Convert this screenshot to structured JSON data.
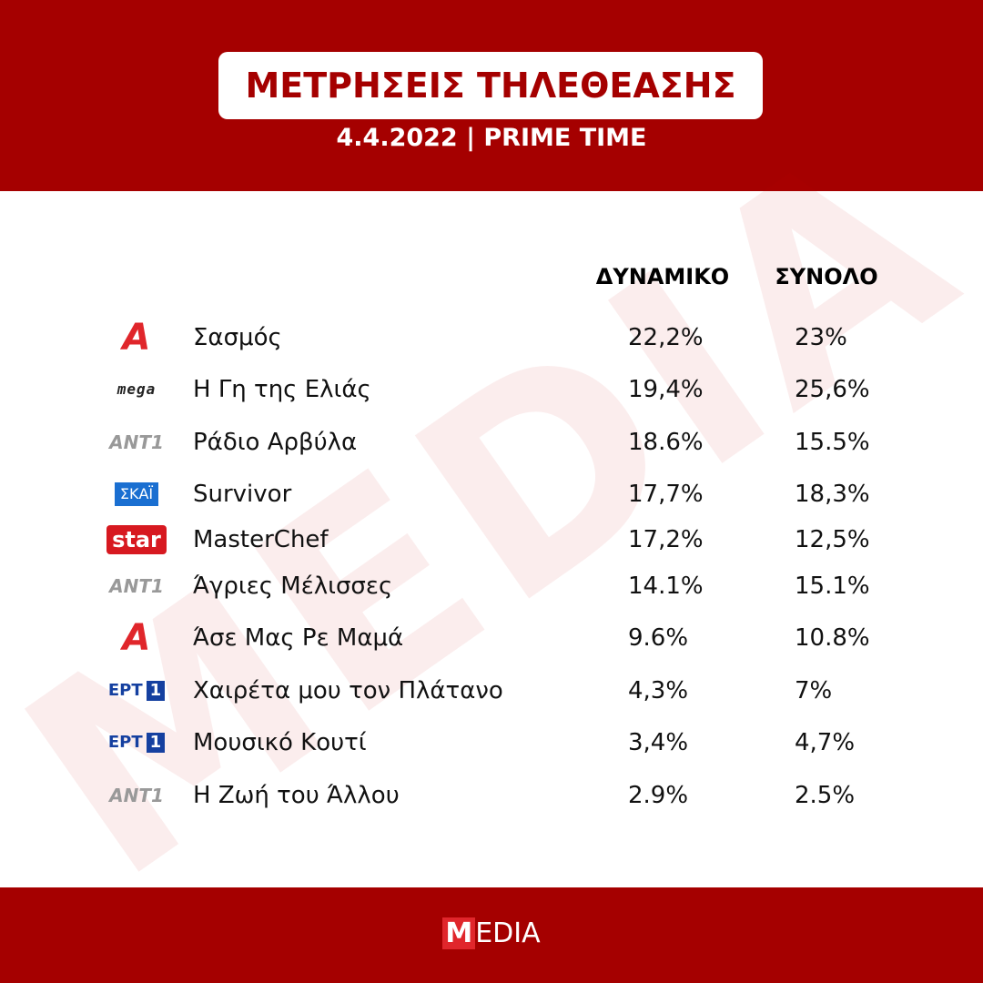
{
  "header": {
    "title": "ΜΕΤΡΗΣΕΙΣ ΤΗΛΕΘΕΑΣΗΣ",
    "subtitle": "4.4.2022 | PRIME TIME"
  },
  "table": {
    "columns": [
      "ΔΥΝΑΜΙΚΟ",
      "ΣΥΝΟΛΟ"
    ],
    "rows": [
      {
        "logo": [
          "Α"
        ],
        "program": "Σασμός",
        "dynamic": "22,2%",
        "total": "23%"
      },
      {
        "logo": [
          "mega"
        ],
        "program": "Η Γη της Ελιάς",
        "dynamic": "19,4%",
        "total": "25,6%"
      },
      {
        "logo": [
          "ANT1"
        ],
        "program": "Ράδιο Αρβύλα",
        "dynamic": "18.6%",
        "total": "15.5%"
      },
      {
        "logo": [
          "ΣΚΑΪ"
        ],
        "program": "Survivor",
        "dynamic": "17,7%",
        "total": "18,3%"
      },
      {
        "logo": [
          "star"
        ],
        "program": "MasterChef",
        "dynamic": "17,2%",
        "total": "12,5%"
      },
      {
        "logo": [
          "ANT1"
        ],
        "program": "Άγριες Μέλισσες",
        "dynamic": "14.1%",
        "total": "15.1%"
      },
      {
        "logo": [
          "Α"
        ],
        "program": "Άσε Μας Ρε Μαμά",
        "dynamic": "9.6%",
        "total": "10.8%"
      },
      {
        "logo": [
          "ΕΡΤ",
          "1"
        ],
        "program": "Χαιρέτα μου τον Πλάτανο",
        "dynamic": "4,3%",
        "total": "7%"
      },
      {
        "logo": [
          "ΕΡΤ",
          "1"
        ],
        "program": "Μουσικό Κουτί",
        "dynamic": "3,4%",
        "total": "4,7%"
      },
      {
        "logo": [
          "ANT1"
        ],
        "program": "Η Ζωή του Άλλου",
        "dynamic": "2.9%",
        "total": "2.5%"
      }
    ]
  },
  "watermark": "MEDIA",
  "footer": {
    "brand": [
      "M",
      "EDIA"
    ]
  }
}
